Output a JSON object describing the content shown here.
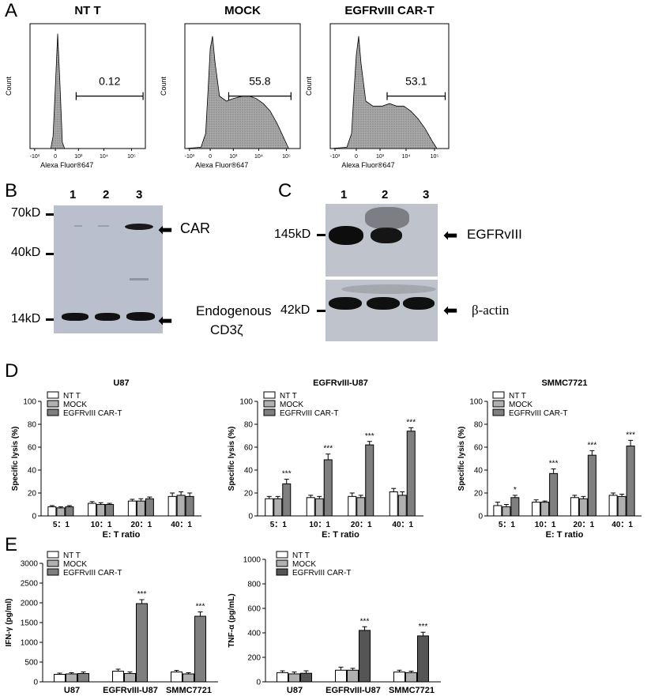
{
  "figure": {
    "panel_letters": {
      "a": "A",
      "b": "B",
      "c": "C",
      "d": "D",
      "e": "E"
    },
    "flow": {
      "y_label": "Count",
      "x_label": "Alexa Fluor®647",
      "ticks": [
        "-10³",
        "0",
        "10³",
        "10⁴",
        "10⁵"
      ],
      "panels": [
        {
          "title": "NT T",
          "gate": "0.12"
        },
        {
          "title": "MOCK",
          "gate": "55.8"
        },
        {
          "title": "EGFRvIII CAR-T",
          "gate": "53.1"
        }
      ]
    },
    "blot_b": {
      "lanes": [
        "1",
        "2",
        "3"
      ],
      "markers": [
        "70kD",
        "40kD",
        "14kD"
      ],
      "label_car": "CAR",
      "label_cd3_1": "Endogenous",
      "label_cd3_2": "CD3ζ"
    },
    "blot_c": {
      "lanes": [
        "1",
        "2",
        "3"
      ],
      "markers": [
        "145kD",
        "42kD"
      ],
      "label_egfr": "EGFRvIII",
      "label_actin": "β-actin"
    }
  },
  "chart_data": [
    {
      "type": "bar",
      "title": "U87",
      "ylabel": "Specific lysis (%)",
      "xlabel": "E: T ratio",
      "ylim": [
        0,
        100
      ],
      "yticks": [
        "0",
        "20",
        "40",
        "60",
        "80",
        "100"
      ],
      "categories": [
        "5：1",
        "10：1",
        "20：1",
        "40：1"
      ],
      "series": [
        {
          "name": "NT T",
          "color": "#ffffff",
          "values": [
            8,
            11,
            13,
            17
          ]
        },
        {
          "name": "MOCK",
          "color": "#b0b0b0",
          "values": [
            7,
            10,
            13,
            18
          ]
        },
        {
          "name": "EGFRvIII CAR-T",
          "color": "#7f7f7f",
          "values": [
            8,
            10,
            15,
            17
          ]
        }
      ],
      "errors": [
        [
          1,
          1.5,
          1.5,
          3
        ],
        [
          1,
          1.5,
          2,
          3
        ],
        [
          1,
          1,
          1.5,
          3
        ]
      ],
      "annotations": [
        "",
        "",
        "",
        ""
      ]
    },
    {
      "type": "bar",
      "title": "EGFRvIII-U87",
      "ylabel": "Specific lysis (%)",
      "xlabel": "E: T ratio",
      "ylim": [
        0,
        100
      ],
      "yticks": [
        "0",
        "20",
        "40",
        "60",
        "80",
        "100"
      ],
      "categories": [
        "5：1",
        "10：1",
        "20：1",
        "40：1"
      ],
      "series": [
        {
          "name": "NT T",
          "color": "#ffffff",
          "values": [
            15,
            16,
            17,
            21
          ]
        },
        {
          "name": "MOCK",
          "color": "#b0b0b0",
          "values": [
            15,
            15,
            16,
            18
          ]
        },
        {
          "name": "EGFRvIII CAR-T",
          "color": "#7f7f7f",
          "values": [
            28,
            49,
            62,
            74
          ]
        }
      ],
      "errors": [
        [
          2,
          2,
          3,
          3
        ],
        [
          2,
          2,
          2,
          3
        ],
        [
          4,
          5,
          3,
          3
        ]
      ],
      "annotations": [
        "***",
        "***",
        "***",
        "***"
      ]
    },
    {
      "type": "bar",
      "title": "SMMC7721",
      "ylabel": "Specific lysis (%)",
      "xlabel": "E: T ratio",
      "ylim": [
        0,
        100
      ],
      "yticks": [
        "0",
        "20",
        "40",
        "60",
        "80",
        "100"
      ],
      "categories": [
        "5：1",
        "10：1",
        "20：1",
        "40：1"
      ],
      "series": [
        {
          "name": "NT T",
          "color": "#ffffff",
          "values": [
            9,
            12,
            16,
            18
          ]
        },
        {
          "name": "MOCK",
          "color": "#b0b0b0",
          "values": [
            8,
            12,
            15,
            17
          ]
        },
        {
          "name": "EGFRvIII CAR-T",
          "color": "#7f7f7f",
          "values": [
            16,
            37,
            53,
            61
          ]
        }
      ],
      "errors": [
        [
          3,
          2,
          2,
          2
        ],
        [
          2,
          1,
          2,
          2
        ],
        [
          2,
          4,
          4,
          5
        ]
      ],
      "annotations": [
        "*",
        "***",
        "***",
        "***"
      ]
    },
    {
      "type": "bar",
      "title": "",
      "ylabel": "IFN-γ (pg/ml)",
      "xlabel": "",
      "ylim": [
        0,
        3000
      ],
      "yticks": [
        "0",
        "500",
        "1000",
        "1500",
        "2000",
        "2500",
        "3000"
      ],
      "categories": [
        "U87",
        "EGFRvIII-U87",
        "SMMC7721"
      ],
      "series": [
        {
          "name": "NT T",
          "color": "#ffffff",
          "values": [
            190,
            270,
            250
          ]
        },
        {
          "name": "MOCK",
          "color": "#b0b0b0",
          "values": [
            200,
            210,
            200
          ]
        },
        {
          "name": "EGFRvIII CAR-T",
          "color": "#7f7f7f",
          "values": [
            210,
            1980,
            1660
          ]
        }
      ],
      "errors": [
        [
          30,
          50,
          40
        ],
        [
          30,
          40,
          30
        ],
        [
          40,
          100,
          110
        ]
      ],
      "annotations": [
        "",
        "***",
        "***"
      ]
    },
    {
      "type": "bar",
      "title": "",
      "ylabel": "TNF-α (pg/mL)",
      "xlabel": "",
      "ylim": [
        0,
        1000
      ],
      "yticks": [
        "0",
        "200",
        "400",
        "600",
        "800",
        "1000"
      ],
      "categories": [
        "U87",
        "EGFRvIII-U87",
        "SMMC7721"
      ],
      "series": [
        {
          "name": "NT T",
          "color": "#ffffff",
          "values": [
            75,
            95,
            80
          ]
        },
        {
          "name": "MOCK",
          "color": "#b0b0b0",
          "values": [
            65,
            95,
            75
          ]
        },
        {
          "name": "EGFRvIII CAR-T",
          "color": "#555555",
          "values": [
            70,
            420,
            375
          ]
        }
      ],
      "errors": [
        [
          15,
          25,
          15
        ],
        [
          15,
          15,
          12
        ],
        [
          20,
          30,
          30
        ]
      ],
      "annotations": [
        "",
        "***",
        "***"
      ]
    }
  ]
}
